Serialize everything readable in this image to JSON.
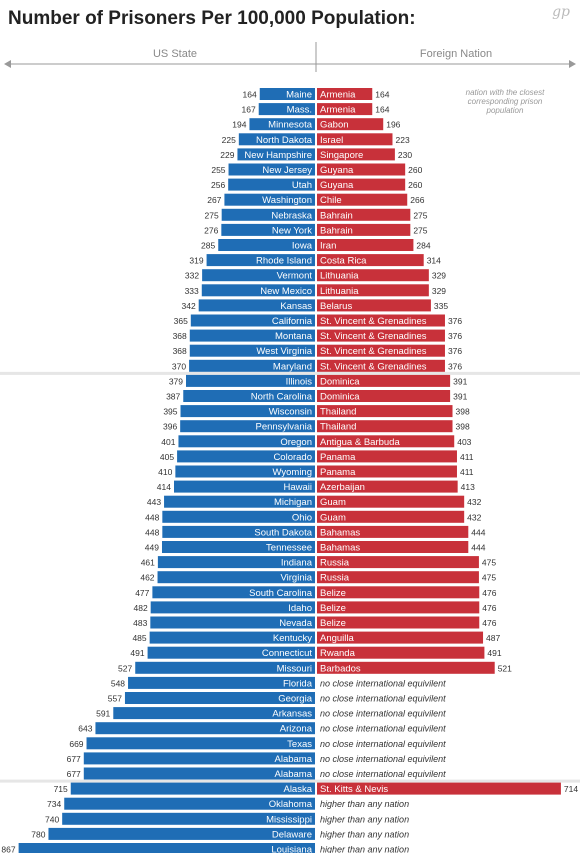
{
  "header": {
    "title": "Number of Prisoners Per 100,000 Population:",
    "logo": "gp"
  },
  "axis": {
    "left_label": "US State",
    "right_label": "Foreign Nation"
  },
  "note": [
    "nation with the closest",
    "corresponding prison",
    "population"
  ],
  "colors": {
    "state_bar": "#1f6db5",
    "nation_bar": "#c8313a",
    "axis_line": "#999999",
    "band": "#e6e6e6"
  },
  "chart_data": {
    "type": "bar",
    "rows": [
      {
        "state": "Maine",
        "state_value": 164,
        "nation": "Armenia",
        "nation_value": 164
      },
      {
        "state": "Mass.",
        "state_value": 167,
        "nation": "Armenia",
        "nation_value": 164
      },
      {
        "state": "Minnesota",
        "state_value": 194,
        "nation": "Gabon",
        "nation_value": 196
      },
      {
        "state": "North Dakota",
        "state_value": 225,
        "nation": "Israel",
        "nation_value": 223
      },
      {
        "state": "New Hampshire",
        "state_value": 229,
        "nation": "Singapore",
        "nation_value": 230
      },
      {
        "state": "New Jersey",
        "state_value": 255,
        "nation": "Guyana",
        "nation_value": 260
      },
      {
        "state": "Utah",
        "state_value": 256,
        "nation": "Guyana",
        "nation_value": 260
      },
      {
        "state": "Washington",
        "state_value": 267,
        "nation": "Chile",
        "nation_value": 266
      },
      {
        "state": "Nebraska",
        "state_value": 275,
        "nation": "Bahrain",
        "nation_value": 275
      },
      {
        "state": "New York",
        "state_value": 276,
        "nation": "Bahrain",
        "nation_value": 275
      },
      {
        "state": "Iowa",
        "state_value": 285,
        "nation": "Iran",
        "nation_value": 284
      },
      {
        "state": "Rhode Island",
        "state_value": 319,
        "nation": "Costa Rica",
        "nation_value": 314
      },
      {
        "state": "Vermont",
        "state_value": 332,
        "nation": "Lithuania",
        "nation_value": 329
      },
      {
        "state": "New Mexico",
        "state_value": 333,
        "nation": "Lithuania",
        "nation_value": 329
      },
      {
        "state": "Kansas",
        "state_value": 342,
        "nation": "Belarus",
        "nation_value": 335
      },
      {
        "state": "California",
        "state_value": 365,
        "nation": "St. Vincent & Grenadines",
        "nation_value": 376
      },
      {
        "state": "Montana",
        "state_value": 368,
        "nation": "St. Vincent & Grenadines",
        "nation_value": 376
      },
      {
        "state": "West Virginia",
        "state_value": 368,
        "nation": "St. Vincent & Grenadines",
        "nation_value": 376
      },
      {
        "state": "Maryland",
        "state_value": 370,
        "nation": "St. Vincent & Grenadines",
        "nation_value": 376
      },
      {
        "state": "Illinois",
        "state_value": 379,
        "nation": "Dominica",
        "nation_value": 391
      },
      {
        "state": "North Carolina",
        "state_value": 387,
        "nation": "Dominica",
        "nation_value": 391
      },
      {
        "state": "Wisconsin",
        "state_value": 395,
        "nation": "Thailand",
        "nation_value": 398
      },
      {
        "state": "Pennsylvania",
        "state_value": 396,
        "nation": "Thailand",
        "nation_value": 398
      },
      {
        "state": "Oregon",
        "state_value": 401,
        "nation": "Antigua & Barbuda",
        "nation_value": 403
      },
      {
        "state": "Colorado",
        "state_value": 405,
        "nation": "Panama",
        "nation_value": 411
      },
      {
        "state": "Wyoming",
        "state_value": 410,
        "nation": "Panama",
        "nation_value": 411
      },
      {
        "state": "Hawaii",
        "state_value": 414,
        "nation": "Azerbaijan",
        "nation_value": 413
      },
      {
        "state": "Michigan",
        "state_value": 443,
        "nation": "Guam",
        "nation_value": 432
      },
      {
        "state": "Ohio",
        "state_value": 448,
        "nation": "Guam",
        "nation_value": 432
      },
      {
        "state": "South Dakota",
        "state_value": 448,
        "nation": "Bahamas",
        "nation_value": 444
      },
      {
        "state": "Tennessee",
        "state_value": 449,
        "nation": "Bahamas",
        "nation_value": 444
      },
      {
        "state": "Indiana",
        "state_value": 461,
        "nation": "Russia",
        "nation_value": 475
      },
      {
        "state": "Virginia",
        "state_value": 462,
        "nation": "Russia",
        "nation_value": 475
      },
      {
        "state": "South Carolina",
        "state_value": 477,
        "nation": "Belize",
        "nation_value": 476
      },
      {
        "state": "Idaho",
        "state_value": 482,
        "nation": "Belize",
        "nation_value": 476
      },
      {
        "state": "Nevada",
        "state_value": 483,
        "nation": "Belize",
        "nation_value": 476
      },
      {
        "state": "Kentucky",
        "state_value": 485,
        "nation": "Anguilla",
        "nation_value": 487
      },
      {
        "state": "Connecticut",
        "state_value": 491,
        "nation": "Rwanda",
        "nation_value": 491
      },
      {
        "state": "Missouri",
        "state_value": 527,
        "nation": "Barbados",
        "nation_value": 521
      },
      {
        "state": "Florida",
        "state_value": 548,
        "nation_text": "no close international equivilent"
      },
      {
        "state": "Georgia",
        "state_value": 557,
        "nation_text": "no close international equivilent"
      },
      {
        "state": "Arkansas",
        "state_value": 591,
        "nation_text": "no close international equivilent"
      },
      {
        "state": "Arizona",
        "state_value": 643,
        "nation_text": "no close international equivilent"
      },
      {
        "state": "Texas",
        "state_value": 669,
        "nation_text": "no close international equivilent"
      },
      {
        "state": "Alabama",
        "state_value": 677,
        "nation_text": "no close international equivilent"
      },
      {
        "state": "Alabama",
        "state_value": 677,
        "nation_text": "no close international equivilent"
      },
      {
        "state": "Alaska",
        "state_value": 715,
        "nation": "St. Kitts & Nevis",
        "nation_value": 714
      },
      {
        "state": "Oklahoma",
        "state_value": 734,
        "nation_text": "higher than any nation"
      },
      {
        "state": "Mississippi",
        "state_value": 740,
        "nation_text": "higher than any nation"
      },
      {
        "state": "Delaware",
        "state_value": 780,
        "nation_text": "higher than any nation"
      },
      {
        "state": "Louisiana",
        "state_value": 867,
        "nation_text": "higher than any nation"
      }
    ]
  }
}
